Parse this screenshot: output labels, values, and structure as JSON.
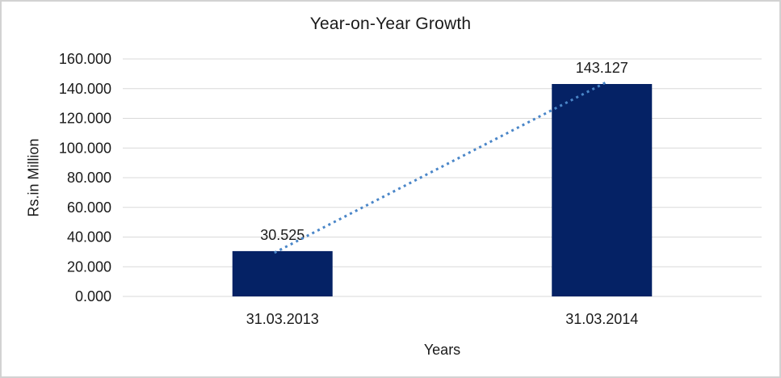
{
  "window": {
    "background": "#ffffff",
    "frame_border_color": "#d2d2d2"
  },
  "chart_data": {
    "type": "bar",
    "title": "Year-on-Year Growth",
    "xlabel": "Years",
    "ylabel": "Rs.in Million",
    "categories": [
      "31.03.2013",
      "31.03.2014"
    ],
    "values": [
      30.525,
      143.127
    ],
    "data_labels": [
      "30.525",
      "143.127"
    ],
    "ylim": [
      0,
      160
    ],
    "ytick_step": 20,
    "ytick_labels": [
      "0.000",
      "20.000",
      "40.000",
      "60.000",
      "80.000",
      "100.000",
      "120.000",
      "140.000",
      "160.000"
    ],
    "grid": true,
    "gridline_color": "#d9d9d9",
    "bar_color": "#052265",
    "text_color": "#1a1a1a",
    "legend": "none",
    "trendline": {
      "style": "dotted",
      "color": "#4a86c8",
      "connects": [
        "bar-top-1",
        "bar-top-2"
      ]
    }
  }
}
